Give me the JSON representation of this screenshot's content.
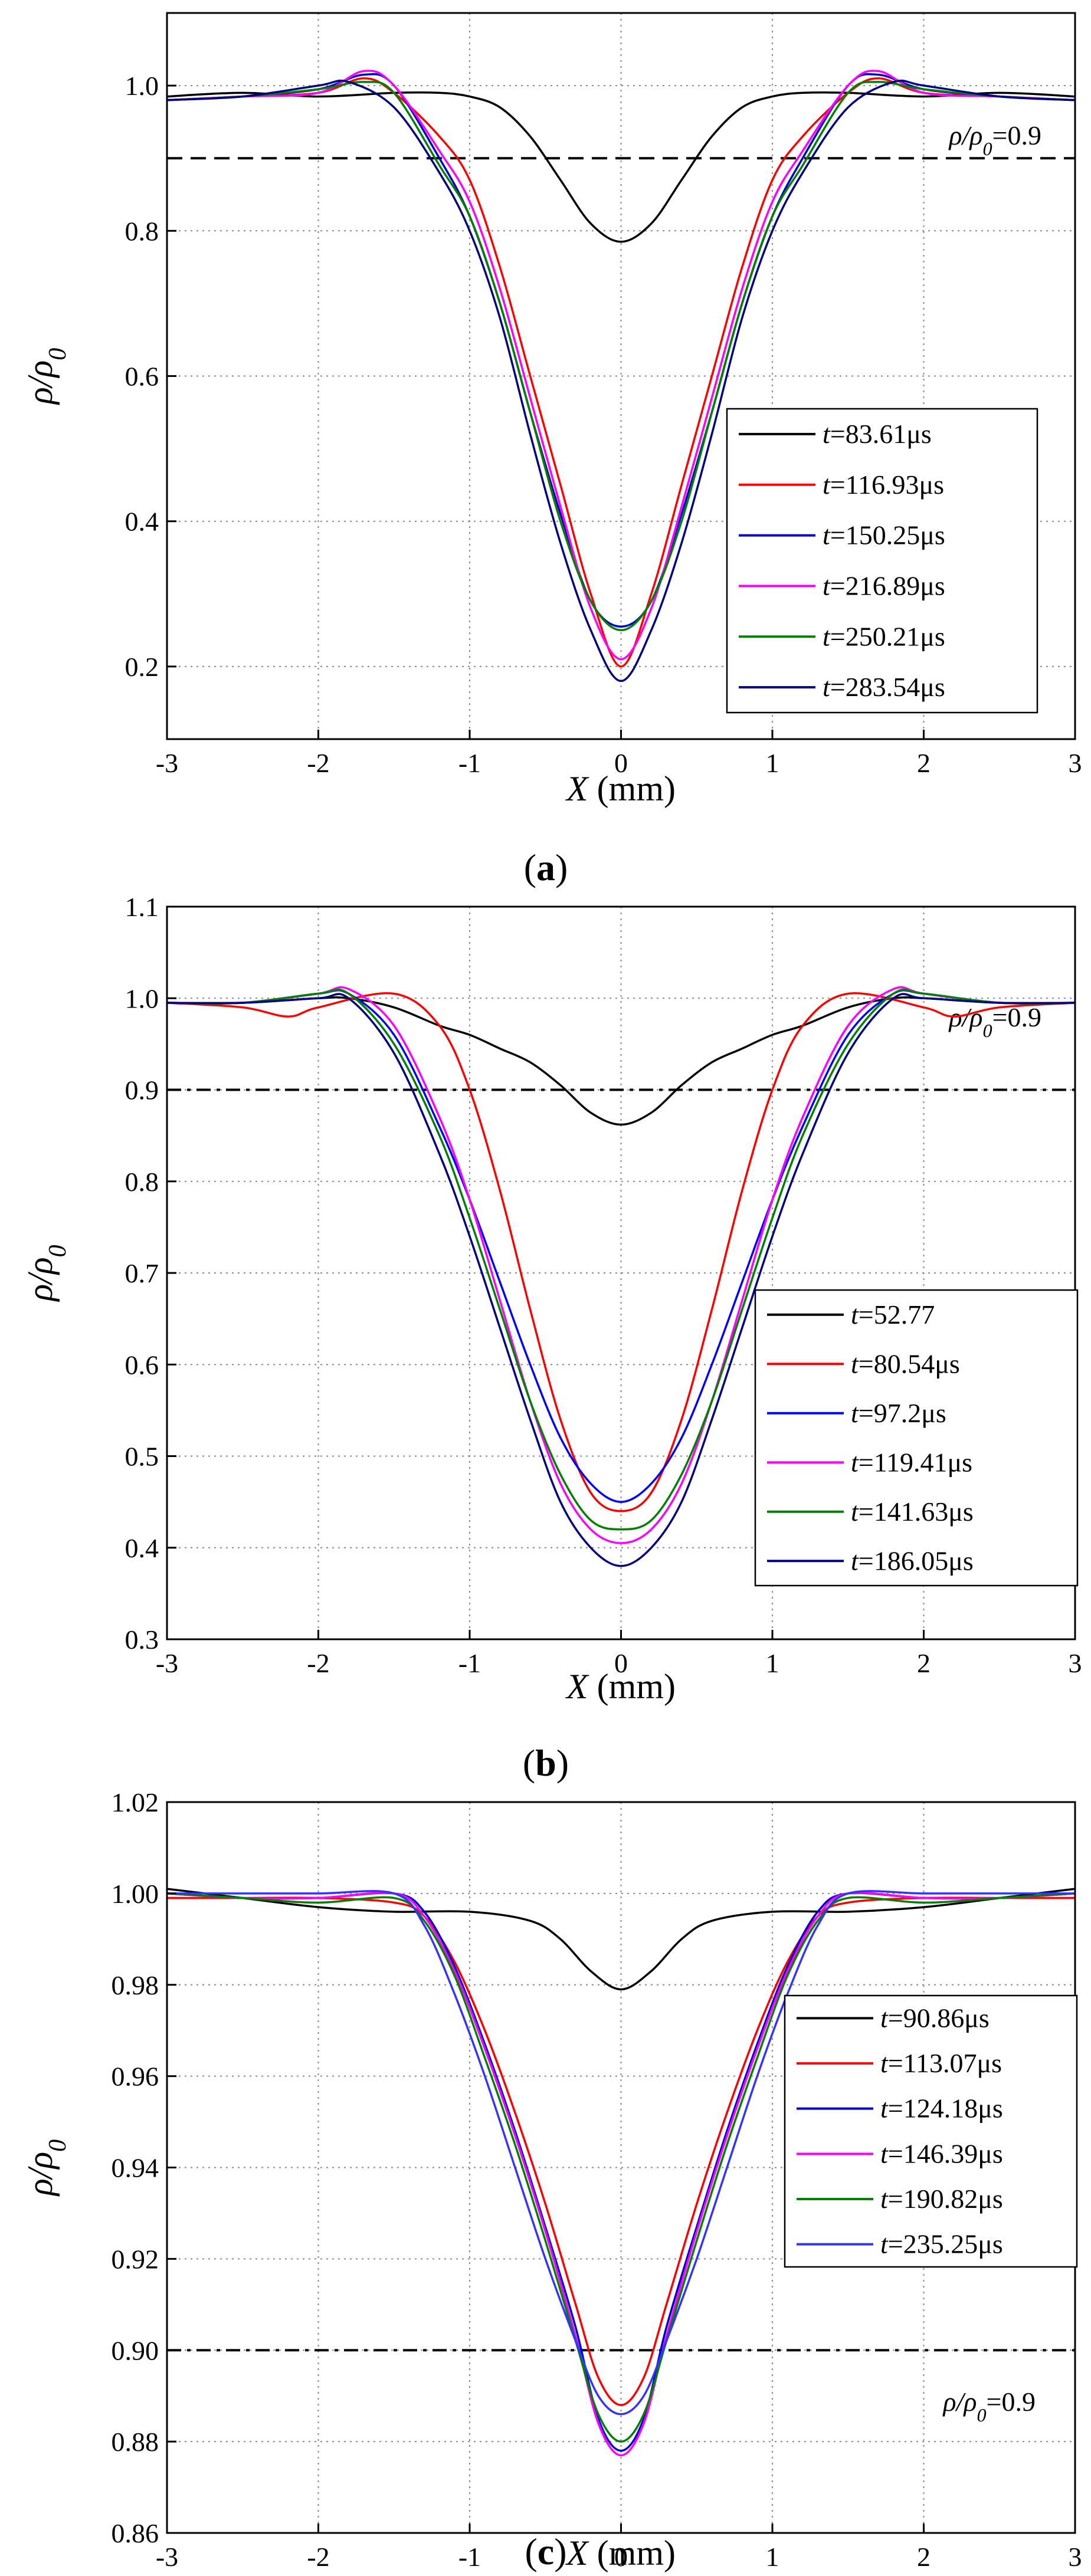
{
  "chart_data": [
    {
      "panel_label": "(a)",
      "panel_letter": "a",
      "type": "line",
      "xlabel": "X (mm)",
      "ylabel": "ρ/ρ0",
      "xlim": [
        -3,
        3
      ],
      "ylim": [
        0.1,
        1.1
      ],
      "xticks": [
        -3,
        -2,
        -1,
        0,
        1,
        2,
        3
      ],
      "yticks": [
        0.2,
        0.4,
        0.6,
        0.8,
        1.0
      ],
      "ytick_labels": [
        "0.2",
        "0.4",
        "0.6",
        "0.8",
        "1.0"
      ],
      "grid": true,
      "legend_position": "right",
      "reference_line": {
        "y": 0.9,
        "label": "ρ/ρ0=0.9",
        "style": "dashed"
      },
      "series": [
        {
          "name": "t=83.61μs",
          "color": "#000000",
          "x": [
            -3,
            -2.5,
            -2,
            -1.5,
            -1.2,
            -1,
            -0.8,
            -0.6,
            -0.4,
            -0.2,
            0,
            0.2,
            0.4,
            0.6,
            0.8,
            1,
            1.2,
            1.5,
            2,
            2.5,
            3
          ],
          "y": [
            0.985,
            0.99,
            0.985,
            0.99,
            0.99,
            0.985,
            0.97,
            0.93,
            0.87,
            0.81,
            0.785,
            0.81,
            0.87,
            0.93,
            0.97,
            0.985,
            0.99,
            0.99,
            0.985,
            0.99,
            0.985
          ]
        },
        {
          "name": "t=116.93μs",
          "color": "#ff0000",
          "x": [
            -3,
            -2.5,
            -2,
            -1.7,
            -1.5,
            -1.2,
            -1,
            -0.8,
            -0.6,
            -0.4,
            -0.2,
            0,
            0.2,
            0.4,
            0.6,
            0.8,
            1,
            1.2,
            1.5,
            1.7,
            2,
            2.5,
            3
          ],
          "y": [
            0.98,
            0.985,
            0.99,
            1.01,
            0.99,
            0.93,
            0.87,
            0.75,
            0.6,
            0.45,
            0.3,
            0.2,
            0.3,
            0.45,
            0.6,
            0.75,
            0.87,
            0.93,
            0.99,
            1.01,
            0.99,
            0.985,
            0.98
          ]
        },
        {
          "name": "t=150.25μs",
          "color": "#0000cc",
          "x": [
            -3,
            -2.5,
            -2,
            -1.7,
            -1.5,
            -1.2,
            -1,
            -0.8,
            -0.6,
            -0.4,
            -0.2,
            0,
            0.2,
            0.4,
            0.6,
            0.8,
            1,
            1.2,
            1.5,
            1.7,
            2,
            2.5,
            3
          ],
          "y": [
            0.98,
            0.985,
            0.995,
            1.015,
            1.0,
            0.9,
            0.82,
            0.7,
            0.55,
            0.41,
            0.29,
            0.255,
            0.29,
            0.41,
            0.55,
            0.7,
            0.82,
            0.9,
            1.0,
            1.015,
            0.995,
            0.985,
            0.98
          ]
        },
        {
          "name": "t=216.89μs",
          "color": "#ff00ff",
          "x": [
            -3,
            -2.5,
            -2,
            -1.7,
            -1.5,
            -1.2,
            -1,
            -0.8,
            -0.6,
            -0.4,
            -0.2,
            0,
            0.2,
            0.4,
            0.6,
            0.8,
            1,
            1.2,
            1.5,
            1.7,
            2,
            2.5,
            3
          ],
          "y": [
            0.98,
            0.985,
            0.99,
            1.02,
            1.0,
            0.91,
            0.84,
            0.72,
            0.57,
            0.42,
            0.28,
            0.21,
            0.28,
            0.42,
            0.57,
            0.72,
            0.84,
            0.91,
            1.0,
            1.02,
            0.99,
            0.985,
            0.98
          ]
        },
        {
          "name": "t=250.21μs",
          "color": "#008000",
          "x": [
            -3,
            -2.5,
            -2,
            -1.7,
            -1.5,
            -1.2,
            -1,
            -0.8,
            -0.6,
            -0.4,
            -0.2,
            0,
            0.2,
            0.4,
            0.6,
            0.8,
            1,
            1.2,
            1.5,
            1.7,
            2,
            2.5,
            3
          ],
          "y": [
            0.98,
            0.985,
            0.995,
            1.005,
            0.99,
            0.89,
            0.82,
            0.7,
            0.55,
            0.4,
            0.29,
            0.25,
            0.29,
            0.4,
            0.55,
            0.7,
            0.82,
            0.89,
            0.99,
            1.005,
            0.995,
            0.985,
            0.98
          ]
        },
        {
          "name": "t=283.54μs",
          "color": "#000080",
          "x": [
            -3,
            -2.5,
            -2,
            -1.8,
            -1.5,
            -1.2,
            -1,
            -0.8,
            -0.6,
            -0.4,
            -0.2,
            0,
            0.2,
            0.4,
            0.6,
            0.8,
            1,
            1.2,
            1.5,
            1.8,
            2,
            2.5,
            3
          ],
          "y": [
            0.98,
            0.985,
            1.0,
            1.005,
            0.97,
            0.88,
            0.8,
            0.68,
            0.52,
            0.37,
            0.25,
            0.18,
            0.25,
            0.37,
            0.52,
            0.68,
            0.8,
            0.88,
            0.97,
            1.005,
            1.0,
            0.985,
            0.98
          ]
        }
      ]
    },
    {
      "panel_label": "(b)",
      "panel_letter": "b",
      "type": "line",
      "xlabel": "X (mm)",
      "ylabel": "ρ/ρ0",
      "xlim": [
        -3,
        3
      ],
      "ylim": [
        0.3,
        1.1
      ],
      "xticks": [
        -3,
        -2,
        -1,
        0,
        1,
        2,
        3
      ],
      "yticks": [
        0.3,
        0.4,
        0.5,
        0.6,
        0.7,
        0.8,
        0.9,
        1.0,
        1.1
      ],
      "ytick_labels": [
        "0.3",
        "0.4",
        "0.5",
        "0.6",
        "0.7",
        "0.8",
        "0.9",
        "1.0",
        "1.1"
      ],
      "grid": true,
      "legend_position": "bottom-right",
      "reference_line": {
        "y": 0.9,
        "label": "ρ/ρ0=0.9",
        "style": "dash-dot"
      },
      "series": [
        {
          "name": "t=52.77",
          "color": "#000000",
          "x": [
            -3,
            -2.5,
            -2,
            -1.8,
            -1.5,
            -1.2,
            -1,
            -0.8,
            -0.6,
            -0.4,
            -0.2,
            0,
            0.2,
            0.4,
            0.6,
            0.8,
            1,
            1.2,
            1.5,
            1.8,
            2,
            2.5,
            3
          ],
          "y": [
            0.995,
            0.995,
            1.0,
            1.0,
            0.99,
            0.97,
            0.96,
            0.945,
            0.93,
            0.905,
            0.875,
            0.862,
            0.875,
            0.905,
            0.93,
            0.945,
            0.96,
            0.97,
            0.99,
            1.0,
            1.0,
            0.995,
            0.995
          ]
        },
        {
          "name": "t=80.54μs",
          "color": "#ff0000",
          "x": [
            -3,
            -2.5,
            -2.2,
            -2,
            -1.5,
            -1.2,
            -1,
            -0.8,
            -0.6,
            -0.4,
            -0.2,
            0,
            0.2,
            0.4,
            0.6,
            0.8,
            1,
            1.2,
            1.5,
            2,
            2.2,
            2.5,
            3
          ],
          "y": [
            0.995,
            0.99,
            0.98,
            0.99,
            1.005,
            0.97,
            0.9,
            0.79,
            0.66,
            0.54,
            0.46,
            0.44,
            0.46,
            0.54,
            0.66,
            0.79,
            0.9,
            0.97,
            1.005,
            0.99,
            0.98,
            0.99,
            0.995
          ]
        },
        {
          "name": "t=97.2μs",
          "color": "#0000ff",
          "x": [
            -3,
            -2.5,
            -2,
            -1.8,
            -1.5,
            -1.2,
            -1,
            -0.8,
            -0.6,
            -0.4,
            -0.2,
            0,
            0.2,
            0.4,
            0.6,
            0.8,
            1,
            1.2,
            1.5,
            1.8,
            2,
            2.5,
            3
          ],
          "y": [
            0.995,
            0.995,
            1.005,
            1.005,
            0.96,
            0.86,
            0.78,
            0.69,
            0.6,
            0.52,
            0.47,
            0.45,
            0.47,
            0.52,
            0.6,
            0.69,
            0.78,
            0.86,
            0.96,
            1.005,
            1.005,
            0.995,
            0.995
          ]
        },
        {
          "name": "t=119.41μs",
          "color": "#ff00ff",
          "x": [
            -3,
            -2.5,
            -2,
            -1.8,
            -1.5,
            -1.2,
            -1,
            -0.8,
            -0.6,
            -0.4,
            -0.2,
            0,
            0.2,
            0.4,
            0.6,
            0.8,
            1,
            1.2,
            1.5,
            1.8,
            2,
            2.5,
            3
          ],
          "y": [
            0.995,
            0.995,
            1.005,
            1.01,
            0.97,
            0.87,
            0.78,
            0.67,
            0.56,
            0.47,
            0.42,
            0.405,
            0.42,
            0.47,
            0.56,
            0.67,
            0.78,
            0.87,
            0.97,
            1.01,
            1.005,
            0.995,
            0.995
          ]
        },
        {
          "name": "t=141.63μs",
          "color": "#008000",
          "x": [
            -3,
            -2.5,
            -2,
            -1.8,
            -1.5,
            -1.2,
            -1,
            -0.8,
            -0.6,
            -0.4,
            -0.2,
            0,
            0.2,
            0.4,
            0.6,
            0.8,
            1,
            1.2,
            1.5,
            1.8,
            2,
            2.5,
            3
          ],
          "y": [
            0.995,
            0.995,
            1.005,
            1.005,
            0.95,
            0.85,
            0.76,
            0.66,
            0.56,
            0.48,
            0.43,
            0.42,
            0.43,
            0.48,
            0.56,
            0.66,
            0.76,
            0.85,
            0.95,
            1.005,
            1.005,
            0.995,
            0.995
          ]
        },
        {
          "name": "t=186.05μs",
          "color": "#000080",
          "x": [
            -3,
            -2.5,
            -2,
            -1.8,
            -1.5,
            -1.2,
            -1,
            -0.8,
            -0.6,
            -0.4,
            -0.2,
            0,
            0.2,
            0.4,
            0.6,
            0.8,
            1,
            1.2,
            1.5,
            1.8,
            2,
            2.5,
            3
          ],
          "y": [
            0.995,
            0.995,
            1.0,
            1.0,
            0.94,
            0.83,
            0.74,
            0.64,
            0.54,
            0.45,
            0.4,
            0.38,
            0.4,
            0.45,
            0.54,
            0.64,
            0.74,
            0.83,
            0.94,
            1.0,
            1.0,
            0.995,
            0.995
          ]
        }
      ]
    },
    {
      "panel_label": "(c)",
      "panel_letter": "c",
      "type": "line",
      "xlabel": "X (mm)",
      "ylabel": "ρ/ρ0",
      "xlim": [
        -3,
        3
      ],
      "ylim": [
        0.86,
        1.02
      ],
      "xticks": [
        -3,
        -2,
        -1,
        0,
        1,
        2,
        3
      ],
      "yticks": [
        0.86,
        0.88,
        0.9,
        0.92,
        0.94,
        0.96,
        0.98,
        1.0,
        1.02
      ],
      "ytick_labels": [
        "0.86",
        "0.88",
        "0.90",
        "0.92",
        "0.94",
        "0.96",
        "0.98",
        "1.00",
        "1.02"
      ],
      "grid": true,
      "legend_position": "right",
      "reference_line": {
        "y": 0.9,
        "label": "ρ/ρ0=0.9",
        "style": "dash-dot"
      },
      "series": [
        {
          "name": "t=90.86μs",
          "color": "#000000",
          "x": [
            -3,
            -2.5,
            -2,
            -1.5,
            -1,
            -0.6,
            -0.4,
            -0.2,
            0,
            0.2,
            0.4,
            0.6,
            1,
            1.5,
            2,
            2.5,
            3
          ],
          "y": [
            1.001,
            0.999,
            0.997,
            0.996,
            0.996,
            0.994,
            0.99,
            0.983,
            0.979,
            0.983,
            0.99,
            0.994,
            0.996,
            0.996,
            0.997,
            0.999,
            1.001
          ]
        },
        {
          "name": "t=113.07μs",
          "color": "#ff0000",
          "x": [
            -3,
            -2.5,
            -2,
            -1.5,
            -1.3,
            -1.1,
            -0.9,
            -0.7,
            -0.5,
            -0.3,
            -0.15,
            0,
            0.15,
            0.3,
            0.5,
            0.7,
            0.9,
            1.1,
            1.3,
            1.5,
            2,
            2.5,
            3
          ],
          "y": [
            0.999,
            0.999,
            0.999,
            0.998,
            0.995,
            0.985,
            0.97,
            0.952,
            0.932,
            0.91,
            0.894,
            0.888,
            0.894,
            0.91,
            0.932,
            0.952,
            0.97,
            0.985,
            0.995,
            0.998,
            0.999,
            0.999,
            0.999
          ]
        },
        {
          "name": "t=124.18μs",
          "color": "#0000cc",
          "x": [
            -3,
            -2.5,
            -2,
            -1.5,
            -1.3,
            -1.1,
            -0.9,
            -0.7,
            -0.5,
            -0.3,
            -0.15,
            0,
            0.15,
            0.3,
            0.5,
            0.7,
            0.9,
            1.1,
            1.3,
            1.5,
            2,
            2.5,
            3
          ],
          "y": [
            1.0,
            0.999,
            0.999,
            1.0,
            0.996,
            0.984,
            0.967,
            0.948,
            0.927,
            0.905,
            0.885,
            0.878,
            0.885,
            0.905,
            0.927,
            0.948,
            0.967,
            0.984,
            0.996,
            1.0,
            0.999,
            0.999,
            1.0
          ]
        },
        {
          "name": "t=146.39μs",
          "color": "#ff00ff",
          "x": [
            -3,
            -2.5,
            -2,
            -1.5,
            -1.3,
            -1.1,
            -0.9,
            -0.7,
            -0.5,
            -0.3,
            -0.15,
            0,
            0.15,
            0.3,
            0.5,
            0.7,
            0.9,
            1.1,
            1.3,
            1.5,
            2,
            2.5,
            3
          ],
          "y": [
            1.0,
            0.999,
            0.999,
            1.0,
            0.995,
            0.983,
            0.966,
            0.947,
            0.926,
            0.903,
            0.884,
            0.877,
            0.884,
            0.903,
            0.926,
            0.947,
            0.966,
            0.983,
            0.995,
            1.0,
            0.999,
            0.999,
            1.0
          ]
        },
        {
          "name": "t=190.82μs",
          "color": "#008000",
          "x": [
            -3,
            -2.5,
            -2,
            -1.5,
            -1.3,
            -1.1,
            -0.9,
            -0.7,
            -0.5,
            -0.3,
            -0.15,
            0,
            0.15,
            0.3,
            0.5,
            0.7,
            0.9,
            1.1,
            1.3,
            1.5,
            2,
            2.5,
            3
          ],
          "y": [
            1.0,
            0.999,
            0.998,
            0.999,
            0.994,
            0.982,
            0.964,
            0.945,
            0.924,
            0.902,
            0.886,
            0.88,
            0.886,
            0.902,
            0.924,
            0.945,
            0.964,
            0.982,
            0.994,
            0.999,
            0.998,
            0.999,
            1.0
          ]
        },
        {
          "name": "t=235.25μs",
          "color": "#3333ff",
          "x": [
            -3,
            -2.5,
            -2,
            -1.5,
            -1.3,
            -1.1,
            -0.9,
            -0.7,
            -0.5,
            -0.3,
            -0.15,
            0,
            0.15,
            0.3,
            0.5,
            0.7,
            0.9,
            1.1,
            1.3,
            1.5,
            2,
            2.5,
            3
          ],
          "y": [
            1.0,
            1.0,
            1.0,
            1.0,
            0.993,
            0.978,
            0.96,
            0.94,
            0.92,
            0.902,
            0.89,
            0.886,
            0.89,
            0.902,
            0.92,
            0.94,
            0.96,
            0.978,
            0.993,
            1.0,
            1.0,
            1.0,
            1.0
          ]
        }
      ]
    }
  ]
}
